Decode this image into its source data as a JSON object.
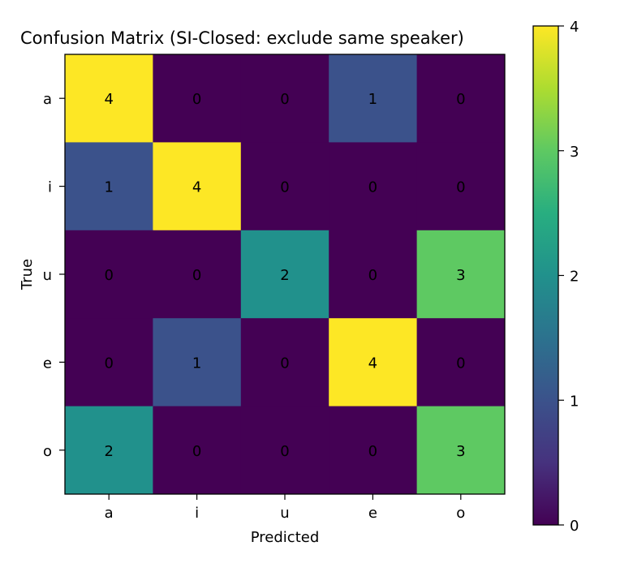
{
  "chart_data": {
    "type": "heatmap",
    "title": "Confusion Matrix (SI-Closed: exclude same speaker)",
    "xlabel": "Predicted",
    "ylabel": "True",
    "x_categories": [
      "a",
      "i",
      "u",
      "e",
      "o"
    ],
    "y_categories": [
      "a",
      "i",
      "u",
      "e",
      "o"
    ],
    "values": [
      [
        4,
        0,
        0,
        1,
        0
      ],
      [
        1,
        4,
        0,
        0,
        0
      ],
      [
        0,
        0,
        2,
        0,
        3
      ],
      [
        0,
        1,
        0,
        4,
        0
      ],
      [
        2,
        0,
        0,
        0,
        3
      ]
    ],
    "colormap": "viridis",
    "value_range": [
      0,
      4
    ],
    "colorbar_ticks": [
      0,
      1,
      2,
      3,
      4
    ],
    "grid": false
  }
}
